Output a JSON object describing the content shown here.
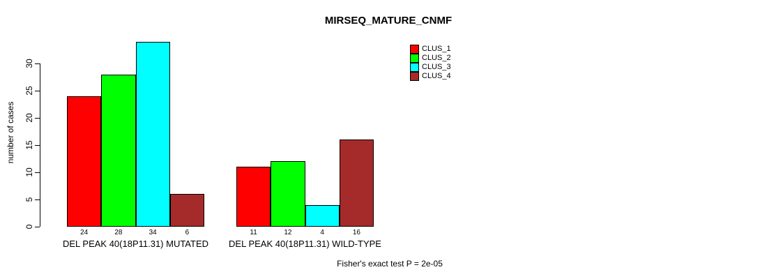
{
  "title": "MIRSEQ_MATURE_CNMF",
  "chart_data": {
    "type": "bar",
    "title": "MIRSEQ_MATURE_CNMF",
    "xlabel": "",
    "ylabel": "number of cases",
    "ylim": [
      0,
      35
    ],
    "yticks": [
      0,
      5,
      10,
      15,
      20,
      25,
      30
    ],
    "grid": false,
    "legend_position": "top-right",
    "categories": [
      "DEL PEAK 40(18P11.31) MUTATED",
      "DEL PEAK 40(18P11.31) WILD-TYPE"
    ],
    "series": [
      {
        "name": "CLUS_1",
        "color": "#ff0000",
        "values": [
          24,
          11
        ]
      },
      {
        "name": "CLUS_2",
        "color": "#00ff00",
        "values": [
          28,
          12
        ]
      },
      {
        "name": "CLUS_3",
        "color": "#00ffff",
        "values": [
          34,
          4
        ]
      },
      {
        "name": "CLUS_4",
        "color": "#a52a2a",
        "values": [
          6,
          16
        ]
      }
    ],
    "groups": [
      {
        "label": "DEL PEAK 40(18P11.31) MUTATED",
        "values": [
          24,
          28,
          34,
          6
        ]
      },
      {
        "label": "DEL PEAK 40(18P11.31) WILD-TYPE",
        "values": [
          11,
          12,
          4,
          16
        ]
      }
    ],
    "bar_value_labels_shown": true,
    "annotation": "Fisher's exact test P = 2e-05"
  }
}
